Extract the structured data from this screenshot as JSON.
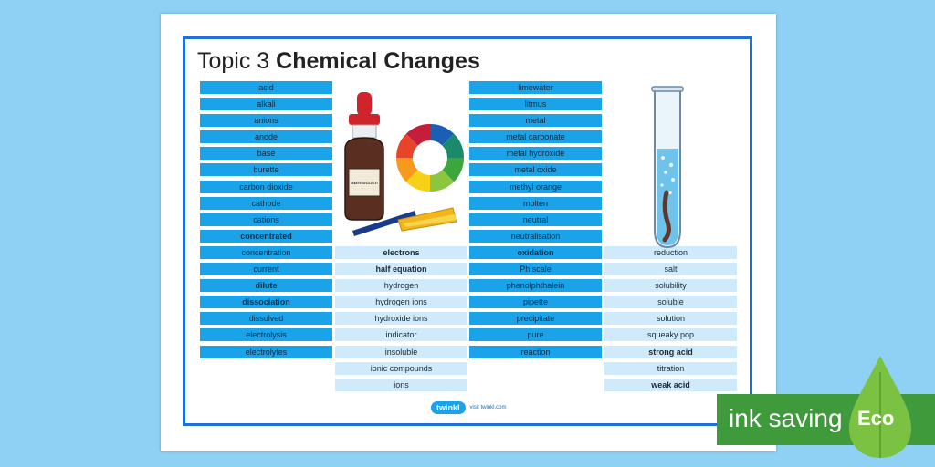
{
  "title": {
    "prefix": "Topic 3",
    "main": "Chemical Changes"
  },
  "columns": [
    {
      "id": "col1",
      "cells": [
        {
          "text": "acid",
          "style": "dark",
          "bold": false
        },
        {
          "text": "alkali",
          "style": "dark",
          "bold": false
        },
        {
          "text": "anions",
          "style": "dark",
          "bold": false
        },
        {
          "text": "anode",
          "style": "dark",
          "bold": false
        },
        {
          "text": "base",
          "style": "dark",
          "bold": false
        },
        {
          "text": "burette",
          "style": "dark",
          "bold": false
        },
        {
          "text": "carbon dioxide",
          "style": "dark",
          "bold": false
        },
        {
          "text": "cathode",
          "style": "dark",
          "bold": false
        },
        {
          "text": "cations",
          "style": "dark",
          "bold": false
        },
        {
          "text": "concentrated",
          "style": "dark",
          "bold": true
        },
        {
          "text": "concentration",
          "style": "dark",
          "bold": false
        },
        {
          "text": "current",
          "style": "dark",
          "bold": false
        },
        {
          "text": "dilute",
          "style": "dark",
          "bold": true
        },
        {
          "text": "dissociation",
          "style": "dark",
          "bold": true
        },
        {
          "text": "dissolved",
          "style": "dark",
          "bold": false
        },
        {
          "text": "electrolysis",
          "style": "dark",
          "bold": false
        },
        {
          "text": "electrolytes",
          "style": "dark",
          "bold": false
        }
      ]
    },
    {
      "id": "col2",
      "cells": [
        {
          "text": "electrons",
          "style": "light",
          "bold": true
        },
        {
          "text": "half equation",
          "style": "light",
          "bold": true
        },
        {
          "text": "hydrogen",
          "style": "light",
          "bold": false
        },
        {
          "text": "hydrogen ions",
          "style": "light",
          "bold": false
        },
        {
          "text": "hydroxide ions",
          "style": "light",
          "bold": false
        },
        {
          "text": "indicator",
          "style": "light",
          "bold": false
        },
        {
          "text": "insoluble",
          "style": "light",
          "bold": false
        },
        {
          "text": "ionic compounds",
          "style": "light",
          "bold": false
        },
        {
          "text": "ions",
          "style": "light",
          "bold": false
        }
      ]
    },
    {
      "id": "col3",
      "cells": [
        {
          "text": "limewater",
          "style": "dark",
          "bold": false
        },
        {
          "text": "litmus",
          "style": "dark",
          "bold": false
        },
        {
          "text": "metal",
          "style": "dark",
          "bold": false
        },
        {
          "text": "metal carbonate",
          "style": "dark",
          "bold": false
        },
        {
          "text": "metal hydroxide",
          "style": "dark",
          "bold": false
        },
        {
          "text": "metal oxide",
          "style": "dark",
          "bold": false
        },
        {
          "text": "methyl orange",
          "style": "dark",
          "bold": false
        },
        {
          "text": "molten",
          "style": "dark",
          "bold": false
        },
        {
          "text": "neutral",
          "style": "dark",
          "bold": false
        },
        {
          "text": "neutralisation",
          "style": "dark",
          "bold": false
        },
        {
          "text": "oxidation",
          "style": "dark",
          "bold": true
        },
        {
          "text": "Ph scale",
          "style": "dark",
          "bold": false
        },
        {
          "text": "phenolphthalein",
          "style": "dark",
          "bold": false
        },
        {
          "text": "pipette",
          "style": "dark",
          "bold": false
        },
        {
          "text": "precipitate",
          "style": "dark",
          "bold": false
        },
        {
          "text": "pure",
          "style": "dark",
          "bold": false
        },
        {
          "text": "reaction",
          "style": "dark",
          "bold": false
        }
      ]
    },
    {
      "id": "col4",
      "cells": [
        {
          "text": "reduction",
          "style": "light",
          "bold": false
        },
        {
          "text": "salt",
          "style": "light",
          "bold": false
        },
        {
          "text": "solubility",
          "style": "light",
          "bold": false
        },
        {
          "text": "soluble",
          "style": "light",
          "bold": false
        },
        {
          "text": "solution",
          "style": "light",
          "bold": false
        },
        {
          "text": "squeaky pop",
          "style": "light",
          "bold": false
        },
        {
          "text": "strong acid",
          "style": "light",
          "bold": true
        },
        {
          "text": "titration",
          "style": "light",
          "bold": false
        },
        {
          "text": "weak acid",
          "style": "light",
          "bold": true
        }
      ]
    }
  ],
  "bottle_label": "UNIVERSAL INDICATOR",
  "logo": {
    "brand": "twinkl",
    "url": "visit twinkl.com"
  },
  "badge": {
    "text": "ink saving",
    "word": "Eco"
  },
  "colors": {
    "dark_cell": "#1aa3e8",
    "light_cell": "#cfeafb",
    "frame": "#1f6fd6",
    "background": "#8fd1f4",
    "eco_green": "#3f9a3c"
  }
}
